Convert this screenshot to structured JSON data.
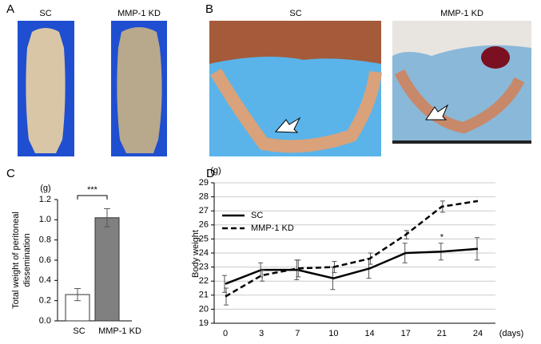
{
  "panels": {
    "labels": [
      "A",
      "B",
      "C",
      "D"
    ],
    "photo_captions": {
      "A": [
        "SC",
        "MMP-1 KD"
      ],
      "B": [
        "SC",
        "MMP-1 KD"
      ]
    }
  },
  "chart_data": [
    {
      "type": "bar",
      "panel": "C",
      "y_unit": "(g)",
      "ylabel": [
        "Total weight of peritoneal",
        "dissemination"
      ],
      "categories": [
        "SC",
        "MMP-1 KD"
      ],
      "values": [
        0.26,
        1.02
      ],
      "errors": [
        0.06,
        0.09
      ],
      "colors": [
        "#ffffff",
        "#808080"
      ],
      "ylim": [
        0,
        1.2
      ],
      "yticks": [
        {
          "value": 0,
          "label": "0.0"
        },
        0.2,
        0.4,
        0.6,
        0.8,
        {
          "value": 1,
          "label": "1.0"
        },
        1.2
      ],
      "significance": {
        "label": "***",
        "between": [
          "SC",
          "MMP-1 KD"
        ]
      }
    },
    {
      "type": "line",
      "panel": "D",
      "y_unit": "(g)",
      "ylabel": "Body weight",
      "x_unit": "(days)",
      "categories": [
        "0",
        "3",
        "7",
        "10",
        "14",
        "17",
        "21",
        "24"
      ],
      "series": [
        {
          "name": "SC",
          "color": "#000000",
          "line_style": "solid",
          "values": [
            21.8,
            22.8,
            22.8,
            22.2,
            22.9,
            24.0,
            24.1,
            24.3
          ],
          "errors": [
            0.6,
            0.5,
            0.7,
            0.8,
            0.7,
            0.7,
            0.6,
            0.8
          ]
        },
        {
          "name": "MMP-1 KD",
          "color": "#000000",
          "line_style": "dashed",
          "values": [
            20.9,
            22.4,
            22.9,
            23.0,
            23.6,
            25.3,
            27.3,
            27.7
          ],
          "errors": [
            0.6,
            0.4,
            0.6,
            0.4,
            0.4,
            0.3,
            0.4,
            null
          ]
        }
      ],
      "ylim": [
        19,
        29
      ],
      "yticks": [
        19,
        20,
        21,
        22,
        23,
        24,
        25,
        26,
        27,
        28,
        29
      ],
      "grid": true,
      "legend": "upper-left",
      "significance": {
        "label": "*",
        "series": "SC",
        "category": "21"
      }
    }
  ]
}
